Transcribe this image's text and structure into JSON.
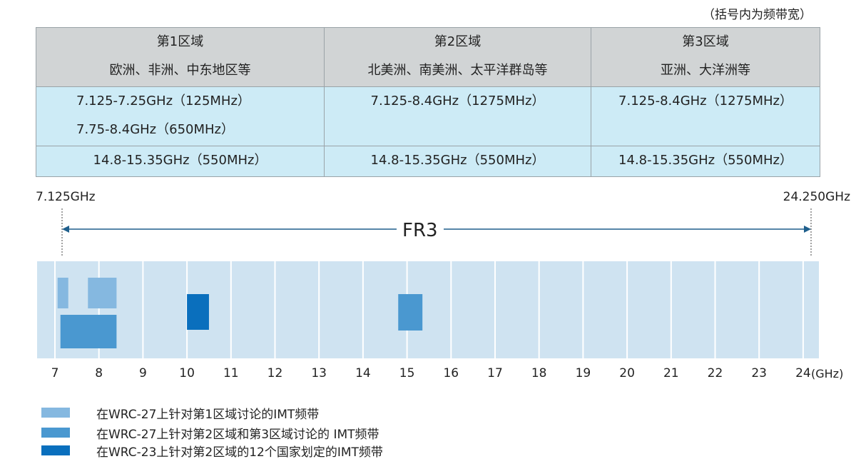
{
  "note": "（括号内为频带宽）",
  "table": {
    "headers": [
      {
        "title": "第1区域",
        "subtitle": "欧洲、非洲、中东地区等"
      },
      {
        "title": "第2区域",
        "subtitle": "北美洲、南美洲、太平洋群岛等"
      },
      {
        "title": "第3区域",
        "subtitle": "亚洲、大洋洲等"
      }
    ],
    "row1": [
      [
        "7.125-7.25GHz（125MHz）",
        "7.75-8.4GHz（650MHz）"
      ],
      [
        "7.125-8.4GHz（1275MHz）"
      ],
      [
        "7.125-8.4GHz（1275MHz）"
      ]
    ],
    "row2": [
      "14.8-15.35GHz（550MHz）",
      "14.8-15.35GHz（550MHz）",
      "14.8-15.35GHz（550MHz）"
    ]
  },
  "chart_data": {
    "type": "range-bar",
    "start_label": "7.125GHz",
    "end_label": "24.250GHz",
    "span_label": "FR3",
    "xlim": [
      7,
      24
    ],
    "ticks": [
      "7",
      "8",
      "9",
      "10",
      "11",
      "12",
      "13",
      "14",
      "15",
      "16",
      "17",
      "18",
      "19",
      "20",
      "21",
      "22",
      "23",
      "24"
    ],
    "unit": "(GHz)",
    "series": [
      {
        "name": "在WRC-27上针对第1区域讨论的IMT频带",
        "color": "#85b8e0",
        "ranges": [
          [
            7.125,
            7.25
          ],
          [
            7.75,
            8.4
          ]
        ],
        "row": "top"
      },
      {
        "name": "在WRC-27上针对第2区域和第3区域讨论的 IMT频带",
        "color": "#4a98d0",
        "ranges": [
          [
            7.125,
            8.4
          ],
          [
            14.8,
            15.35
          ]
        ],
        "row": "bottom-mid"
      },
      {
        "name": "在WRC-23上针对第2区域的12个国家划定的IMT频带",
        "color": "#0a6fbd",
        "ranges": [
          [
            10.0,
            10.5
          ]
        ],
        "row": "mid"
      }
    ]
  }
}
